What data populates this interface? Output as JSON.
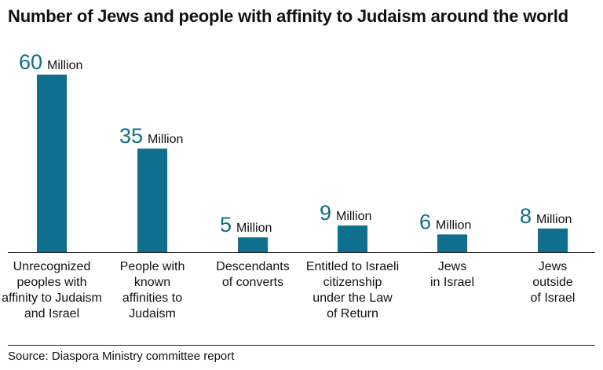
{
  "title": "Number of Jews and people with affinity to Judaism around the world",
  "source": "Source: Diaspora Ministry committee report",
  "colors": {
    "bar": "#0e6f8f",
    "value": "#0e6f8f"
  },
  "chart_data": {
    "type": "bar",
    "title": "Number of Jews and people with affinity to Judaism around the world",
    "unit_label": "Million",
    "categories": [
      "Unrecognized peoples with affinity to Judaism and Israel",
      "People with known affinities to Judaism",
      "Descendants of converts",
      "Entitled to Israeli citizenship under the Law of Return",
      "Jews in Israel",
      "Jews outside of Israel"
    ],
    "category_lines": [
      [
        "Unrecognized",
        "peoples with",
        "affinity to Judaism",
        "and Israel"
      ],
      [
        "People with",
        "known",
        "affinities to",
        "Judaism"
      ],
      [
        "Descendants",
        "of converts"
      ],
      [
        "Entitled to Israeli",
        "citizenship",
        "under the Law",
        "of Return"
      ],
      [
        "Jews",
        "in Israel"
      ],
      [
        "Jews",
        "outside",
        "of Israel"
      ]
    ],
    "values": [
      60,
      35,
      5,
      9,
      6,
      8
    ],
    "ylim": [
      0,
      60
    ],
    "xlabel": "",
    "ylabel": "",
    "grid": false
  }
}
